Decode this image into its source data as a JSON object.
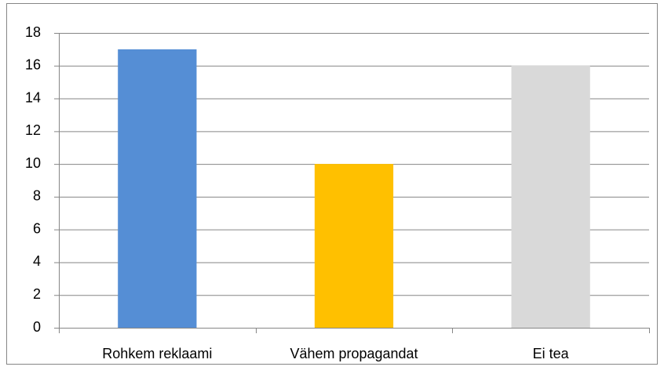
{
  "chart_data": {
    "type": "bar",
    "categories": [
      "Rohkem reklaami",
      "Vähem propagandat",
      "Ei tea"
    ],
    "values": [
      17,
      10,
      16
    ],
    "colors": [
      "#558ed5",
      "#ffc000",
      "#d9d9d9"
    ],
    "ylim": [
      0,
      18
    ],
    "yticks": [
      0,
      2,
      4,
      6,
      8,
      10,
      12,
      14,
      16,
      18
    ],
    "grid": true
  }
}
